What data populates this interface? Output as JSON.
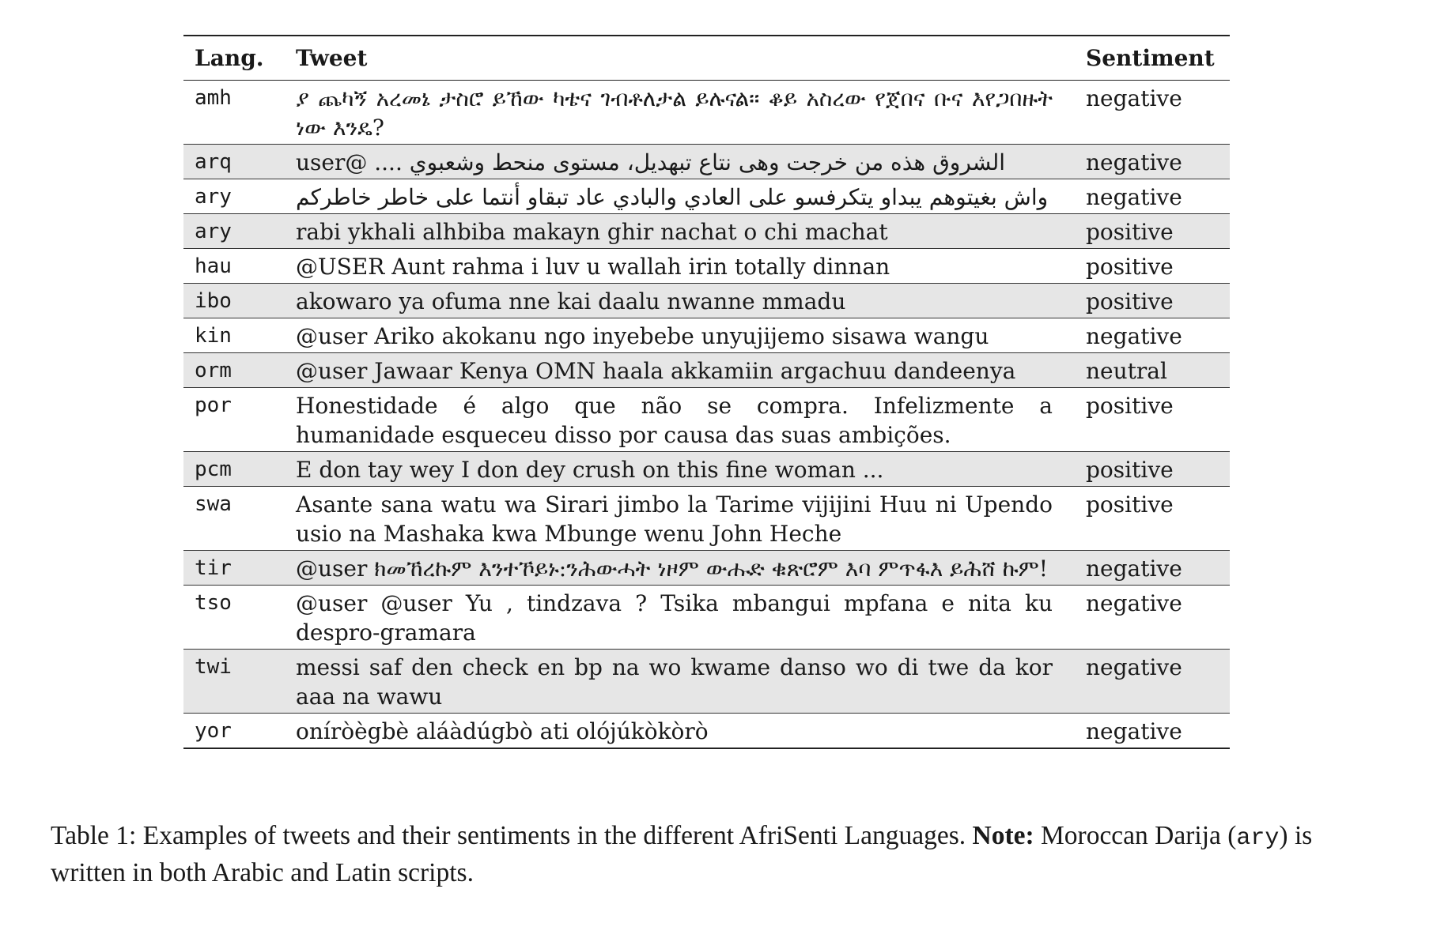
{
  "table": {
    "headers": {
      "lang": "Lang.",
      "tweet": "Tweet",
      "sentiment": "Sentiment"
    },
    "rows": [
      {
        "lang": "amh",
        "tweet": "ያ ጨካኝ አረመኔ ታስሮ ይኸው ካቴና ገብቶለታል ይሉናል። ቆይ አስረው የጀበና ቡና እየጋበዙት ነው እንዴ?",
        "sentiment": "negative",
        "shaded": false,
        "rtl": false
      },
      {
        "lang": "arq",
        "tweet": "الشروق هذه من خرجت وهى نتاع تبهديل، مستوى منحط وشعبوي .... @user",
        "sentiment": "negative",
        "shaded": true,
        "rtl": true
      },
      {
        "lang": "ary",
        "tweet": "واش بغيتوهم يبداو يتكرفسو على العادي والبادي عاد تبقاو أنتما على خاطر خاطركم",
        "sentiment": "negative",
        "shaded": false,
        "rtl": true
      },
      {
        "lang": "ary",
        "tweet": "rabi ykhali alhbiba makayn ghir nachat o chi machat",
        "sentiment": "positive",
        "shaded": true,
        "rtl": false
      },
      {
        "lang": "hau",
        "tweet": "@USER Aunt rahma i luv u wallah irin totally dinnan",
        "sentiment": "positive",
        "shaded": false,
        "rtl": false
      },
      {
        "lang": "ibo",
        "tweet": "akowaro ya ofuma nne kai daalu nwanne mmadu",
        "sentiment": "positive",
        "shaded": true,
        "rtl": false
      },
      {
        "lang": "kin",
        "tweet": "@user Ariko akokanu ngo inyebebe unyujijemo sisawa wangu",
        "sentiment": "negative",
        "shaded": false,
        "rtl": false
      },
      {
        "lang": "orm",
        "tweet": "@user Jawaar Kenya OMN haala akkamiin argachuu dandeenya",
        "sentiment": "neutral",
        "shaded": true,
        "rtl": false
      },
      {
        "lang": "por",
        "tweet": "Honestidade é algo que não se compra. Infelizmente a humanidade esqueceu disso por causa das suas ambições.",
        "sentiment": "positive",
        "shaded": false,
        "rtl": false
      },
      {
        "lang": "pcm",
        "tweet": "E don tay wey I don dey crush on this fine woman ...",
        "sentiment": "positive",
        "shaded": true,
        "rtl": false
      },
      {
        "lang": "swa",
        "tweet": "Asante sana watu wa Sirari jimbo la Tarime vijijini Huu ni Upendo usio na Mashaka kwa Mbunge wenu John Heche",
        "sentiment": "positive",
        "shaded": false,
        "rtl": false
      },
      {
        "lang": "tir",
        "tweet": "@user ክመኸረኩም እንተኾይኑ:ንሕውሓት ነዞም ውሑድ ቁጽሮም እባ ምጥፋእ ይሕሸ ኩም!",
        "sentiment": "negative",
        "shaded": true,
        "rtl": false
      },
      {
        "lang": "tso",
        "tweet": "@user @user Yu , tindzava ? Tsika mbangui mpfana e nita ku despro-gramara",
        "sentiment": "negative",
        "shaded": false,
        "rtl": false
      },
      {
        "lang": "twi",
        "tweet": "messi saf den check en bp na wo kwame danso wo di twe da kor aaa na wawu",
        "sentiment": "negative",
        "shaded": true,
        "rtl": false
      },
      {
        "lang": "yor",
        "tweet": "oníròègbè aláàdúgbò ati olójúkòkòrò",
        "sentiment": "negative",
        "shaded": false,
        "rtl": false
      }
    ]
  },
  "caption": {
    "label": "Table 1: Examples of tweets and their sentiments in the different AfriSenti Languages.",
    "note_label": "Note:",
    "note_text_1": "Moroccan Darija (",
    "note_code": "ary",
    "note_text_2": ") is written in both Arabic and Latin scripts."
  }
}
